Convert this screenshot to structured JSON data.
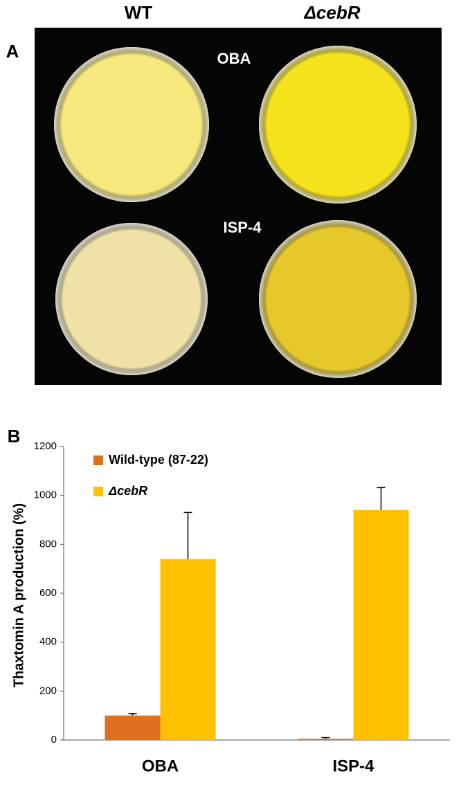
{
  "panel_a": {
    "label": "A",
    "column_labels": [
      "WT",
      "ΔcebR"
    ],
    "row_labels": [
      "OBA",
      "ISP-4"
    ]
  },
  "chart_data": {
    "type": "bar",
    "panel_label": "B",
    "y_label": "Thaxtomin A production (%)",
    "categories": [
      "OBA",
      "ISP-4"
    ],
    "series": [
      {
        "name": "Wild-type (87-22)",
        "color": "#e07020",
        "values": [
          100,
          5
        ],
        "errors": [
          8,
          5
        ]
      },
      {
        "name": "ΔcebR",
        "color": "#ffc000",
        "values": [
          740,
          940
        ],
        "errors": [
          190,
          92
        ]
      }
    ],
    "ylim": [
      0,
      1200
    ],
    "yticks": [
      0,
      200,
      400,
      600,
      800,
      1000,
      1200
    ]
  }
}
